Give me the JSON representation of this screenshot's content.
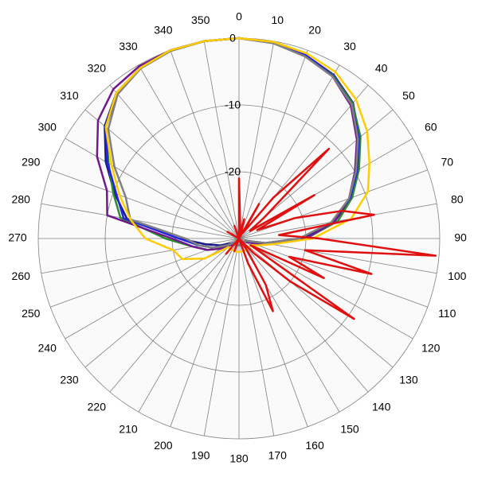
{
  "chart_data": {
    "type": "polar",
    "rlim": [
      -30,
      0
    ],
    "rticks": [
      -20,
      -10,
      0
    ],
    "thetaticks": [
      0,
      10,
      20,
      30,
      40,
      50,
      60,
      70,
      80,
      90,
      100,
      110,
      120,
      130,
      140,
      150,
      160,
      170,
      180,
      190,
      200,
      210,
      220,
      230,
      240,
      250,
      260,
      270,
      280,
      290,
      300,
      310,
      320,
      330,
      340,
      350
    ],
    "theta": [
      0,
      10,
      20,
      30,
      40,
      50,
      60,
      70,
      80,
      90,
      100,
      110,
      120,
      130,
      140,
      150,
      160,
      170,
      180,
      190,
      200,
      210,
      220,
      230,
      240,
      250,
      260,
      270,
      280,
      290,
      300,
      310,
      320,
      330,
      340,
      350
    ],
    "series": [
      {
        "color": "#1a1a8c",
        "values": [
          0,
          -0.2,
          -0.8,
          -1.7,
          -3.5,
          -6.5,
          -9.5,
          -12,
          -15.5,
          -20.5,
          -26,
          -29,
          -29,
          -29,
          -29,
          -29,
          -29,
          -29,
          -29,
          -29,
          -29,
          -29,
          -29,
          -29,
          -28.5,
          -27,
          -25,
          -21,
          -13,
          -10.2,
          -7,
          -3.8,
          -1.5,
          -0.5,
          0,
          0
        ]
      },
      {
        "color": "#2e8b2e",
        "values": [
          0,
          -0.3,
          -0.9,
          -1.8,
          -3.6,
          -6.3,
          -9.3,
          -12,
          -15,
          -20,
          -25.5,
          -28.5,
          -29,
          -29,
          -29,
          -29,
          -29,
          -29,
          -29,
          -29,
          -29,
          -29,
          -29,
          -28.5,
          -27.5,
          -25,
          -23,
          -19,
          -12,
          -10,
          -7.5,
          -4,
          -1.7,
          -0.6,
          -0.1,
          0
        ]
      },
      {
        "color": "#2424e0",
        "values": [
          0,
          -0.2,
          -0.8,
          -1.9,
          -3.8,
          -6.6,
          -9.6,
          -12.3,
          -15.8,
          -21,
          -26,
          -29,
          -29,
          -29,
          -29,
          -29,
          -29,
          -29,
          -29,
          -29,
          -29,
          -29,
          -29,
          -29,
          -28,
          -26,
          -24,
          -21,
          -12.5,
          -10.5,
          -7.3,
          -4,
          -1.6,
          -0.5,
          0,
          0
        ]
      },
      {
        "color": "#6e1a8c",
        "values": [
          0,
          -0.3,
          -1,
          -2,
          -4,
          -7,
          -10,
          -12.5,
          -15.5,
          -20,
          -25,
          -28,
          -29,
          -29,
          -29,
          -29,
          -29,
          -29,
          -29,
          -29,
          -29,
          -29,
          -29,
          -28.5,
          -27,
          -25,
          -23,
          -20,
          -10,
          -9,
          -5.5,
          -2.5,
          -0.8,
          -0.2,
          0,
          0
        ]
      },
      {
        "color": "#808080",
        "values": [
          0,
          -0.3,
          -1,
          -2,
          -3.8,
          -6.8,
          -9.8,
          -12.5,
          -16,
          -21,
          -26,
          -29,
          -29,
          -29,
          -29,
          -29,
          -29,
          -29,
          -29,
          -29,
          -29,
          -29,
          -29,
          -29,
          -28,
          -26,
          -24,
          -22,
          -13.5,
          -12,
          -8.5,
          -4.5,
          -1.8,
          -0.6,
          -0.1,
          0
        ]
      },
      {
        "color": "#ffcc00",
        "values": [
          0,
          -0.1,
          -0.5,
          -1.2,
          -2.8,
          -5,
          -7.5,
          -9.5,
          -13,
          -19,
          -25,
          -27,
          -28,
          -28,
          -28,
          -28,
          -28,
          -28,
          -28,
          -28,
          -28,
          -28,
          -28,
          -28,
          -24,
          -21,
          -20,
          -16,
          -13.5,
          -11,
          -8,
          -4,
          -1.5,
          -0.5,
          0,
          0
        ]
      },
      {
        "color": "#e01010",
        "theta": [
          0,
          5,
          10,
          15,
          20,
          25,
          30,
          35,
          40,
          45,
          50,
          55,
          60,
          65,
          70,
          75,
          80,
          85,
          90,
          95,
          100,
          105,
          110,
          115,
          120,
          125,
          130,
          135,
          140,
          145,
          150,
          155,
          160,
          165,
          170,
          175,
          180,
          185,
          190,
          195,
          200,
          205,
          210,
          215,
          220,
          225,
          230,
          235,
          240,
          245,
          250,
          255,
          260,
          265,
          270,
          275,
          280,
          285,
          290,
          295,
          300,
          305,
          310,
          315,
          320,
          325,
          330,
          335,
          340,
          345,
          350,
          355
        ],
        "values": [
          -21,
          -28,
          -30,
          -27,
          -29,
          -30,
          -24,
          -29,
          -22,
          -11,
          -25,
          -28,
          -17,
          -27,
          -21,
          -14,
          -9.5,
          -24,
          -18,
          -0.5,
          -20,
          -9.5,
          -22,
          -16,
          -28,
          -9,
          -20,
          -27,
          -30,
          -28,
          -22,
          -18,
          -26,
          -30,
          -30,
          -30,
          -30,
          -30,
          -30,
          -30,
          -28,
          -30,
          -30,
          -30,
          -27,
          -30,
          -30,
          -30,
          -30,
          -30,
          -30,
          -30,
          -30,
          -30,
          -30,
          -30,
          -30,
          -30,
          -30,
          -30,
          -28,
          -30,
          -30,
          -30,
          -30,
          -30,
          -30,
          -30,
          -28,
          -30,
          -30,
          -30
        ]
      }
    ]
  }
}
